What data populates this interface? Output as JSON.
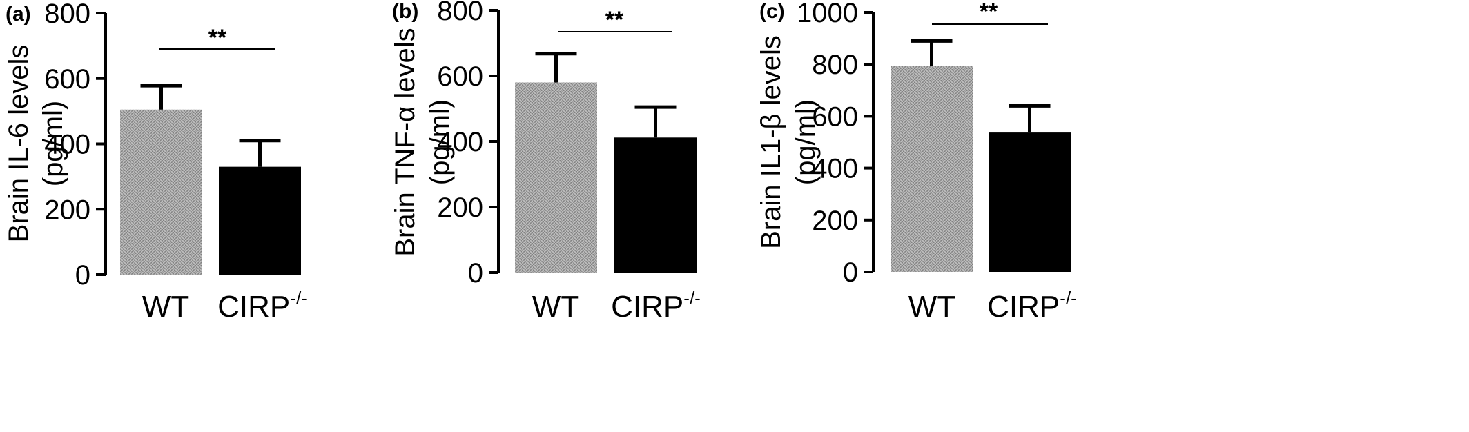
{
  "chart_data": [
    {
      "type": "bar",
      "panel_label": "(a)",
      "categories": [
        "WT",
        "CIRP-/-"
      ],
      "category_display": [
        {
          "base": "WT",
          "sup": ""
        },
        {
          "base": "CIRP",
          "sup": "-/-"
        }
      ],
      "values": [
        505,
        330
      ],
      "error_upper": [
        578,
        410
      ],
      "ylabel_line1": "Brain IL-6 levels",
      "ylabel_line2": "(pg/ml)",
      "ylim": [
        0,
        800
      ],
      "yticks": [
        0,
        200,
        400,
        600,
        800
      ],
      "significance": "**",
      "bar_fills": [
        "hatch-gray",
        "#000000"
      ]
    },
    {
      "type": "bar",
      "panel_label": "(b)",
      "categories": [
        "WT",
        "CIRP-/-"
      ],
      "category_display": [
        {
          "base": "WT",
          "sup": ""
        },
        {
          "base": "CIRP",
          "sup": "-/-"
        }
      ],
      "values": [
        580,
        412
      ],
      "error_upper": [
        668,
        505
      ],
      "ylabel_line1": "Brain TNF-α levels",
      "ylabel_line2": "(pg/ml)",
      "ylim": [
        0,
        800
      ],
      "yticks": [
        0,
        200,
        400,
        600,
        800
      ],
      "significance": "**",
      "bar_fills": [
        "hatch-gray",
        "#000000"
      ]
    },
    {
      "type": "bar",
      "panel_label": "(c)",
      "categories": [
        "WT",
        "CIRP-/-"
      ],
      "category_display": [
        {
          "base": "WT",
          "sup": ""
        },
        {
          "base": "CIRP",
          "sup": "-/-"
        }
      ],
      "values": [
        793,
        537
      ],
      "error_upper": [
        890,
        640
      ],
      "ylabel_line1": "Brain IL1-β levels",
      "ylabel_line2": "(pg/ml)",
      "ylim": [
        0,
        1000
      ],
      "yticks": [
        0,
        200,
        400,
        600,
        800,
        1000
      ],
      "significance": "**",
      "bar_fills": [
        "hatch-gray",
        "#000000"
      ]
    }
  ]
}
